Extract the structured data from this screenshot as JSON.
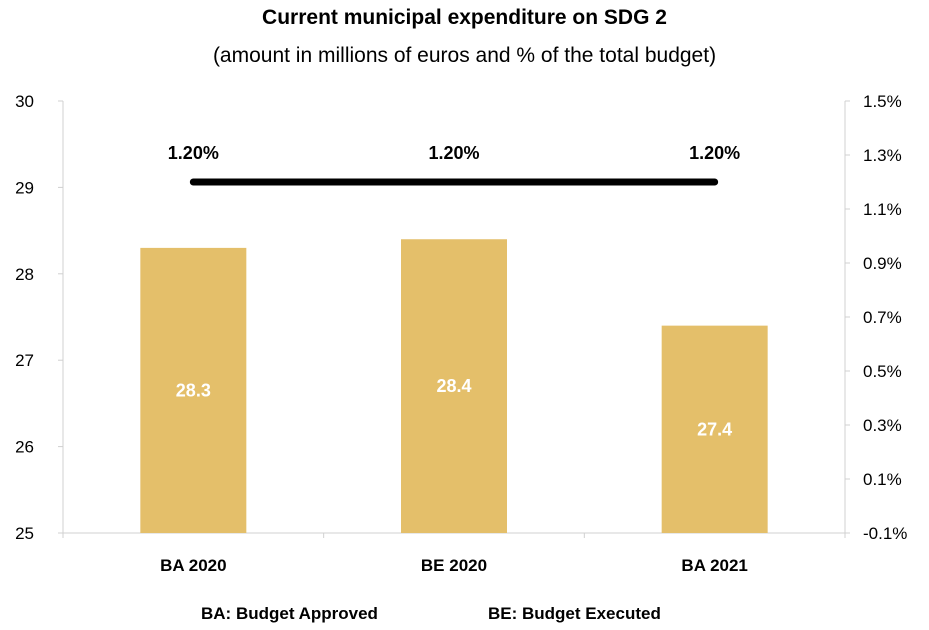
{
  "chart_data": {
    "type": "bar",
    "title": "Current municipal expenditure on SDG 2",
    "subtitle": "(amount in millions of euros and % of the total budget)",
    "categories": [
      "BA 2020",
      "BE 2020",
      "BA 2021"
    ],
    "series": [
      {
        "type": "bar",
        "axis": "left",
        "values": [
          28.3,
          28.4,
          27.4
        ],
        "color": "#E4BF6A"
      },
      {
        "type": "line",
        "axis": "right",
        "values": [
          1.2,
          1.2,
          1.2
        ],
        "value_labels": [
          "1.20%",
          "1.20%",
          "1.20%"
        ],
        "color": "#000000"
      }
    ],
    "ylim": [
      25,
      30
    ],
    "yticks": [
      "25",
      "26",
      "27",
      "28",
      "29",
      "30"
    ],
    "y2lim": [
      -0.1,
      1.5
    ],
    "y2ticks": [
      "-0.1%",
      "0.1%",
      "0.3%",
      "0.5%",
      "0.7%",
      "0.9%",
      "1.1%",
      "1.3%",
      "1.5%"
    ],
    "grid": false,
    "notes": [
      "BA: Budget Approved",
      "BE: Budget Executed"
    ]
  }
}
